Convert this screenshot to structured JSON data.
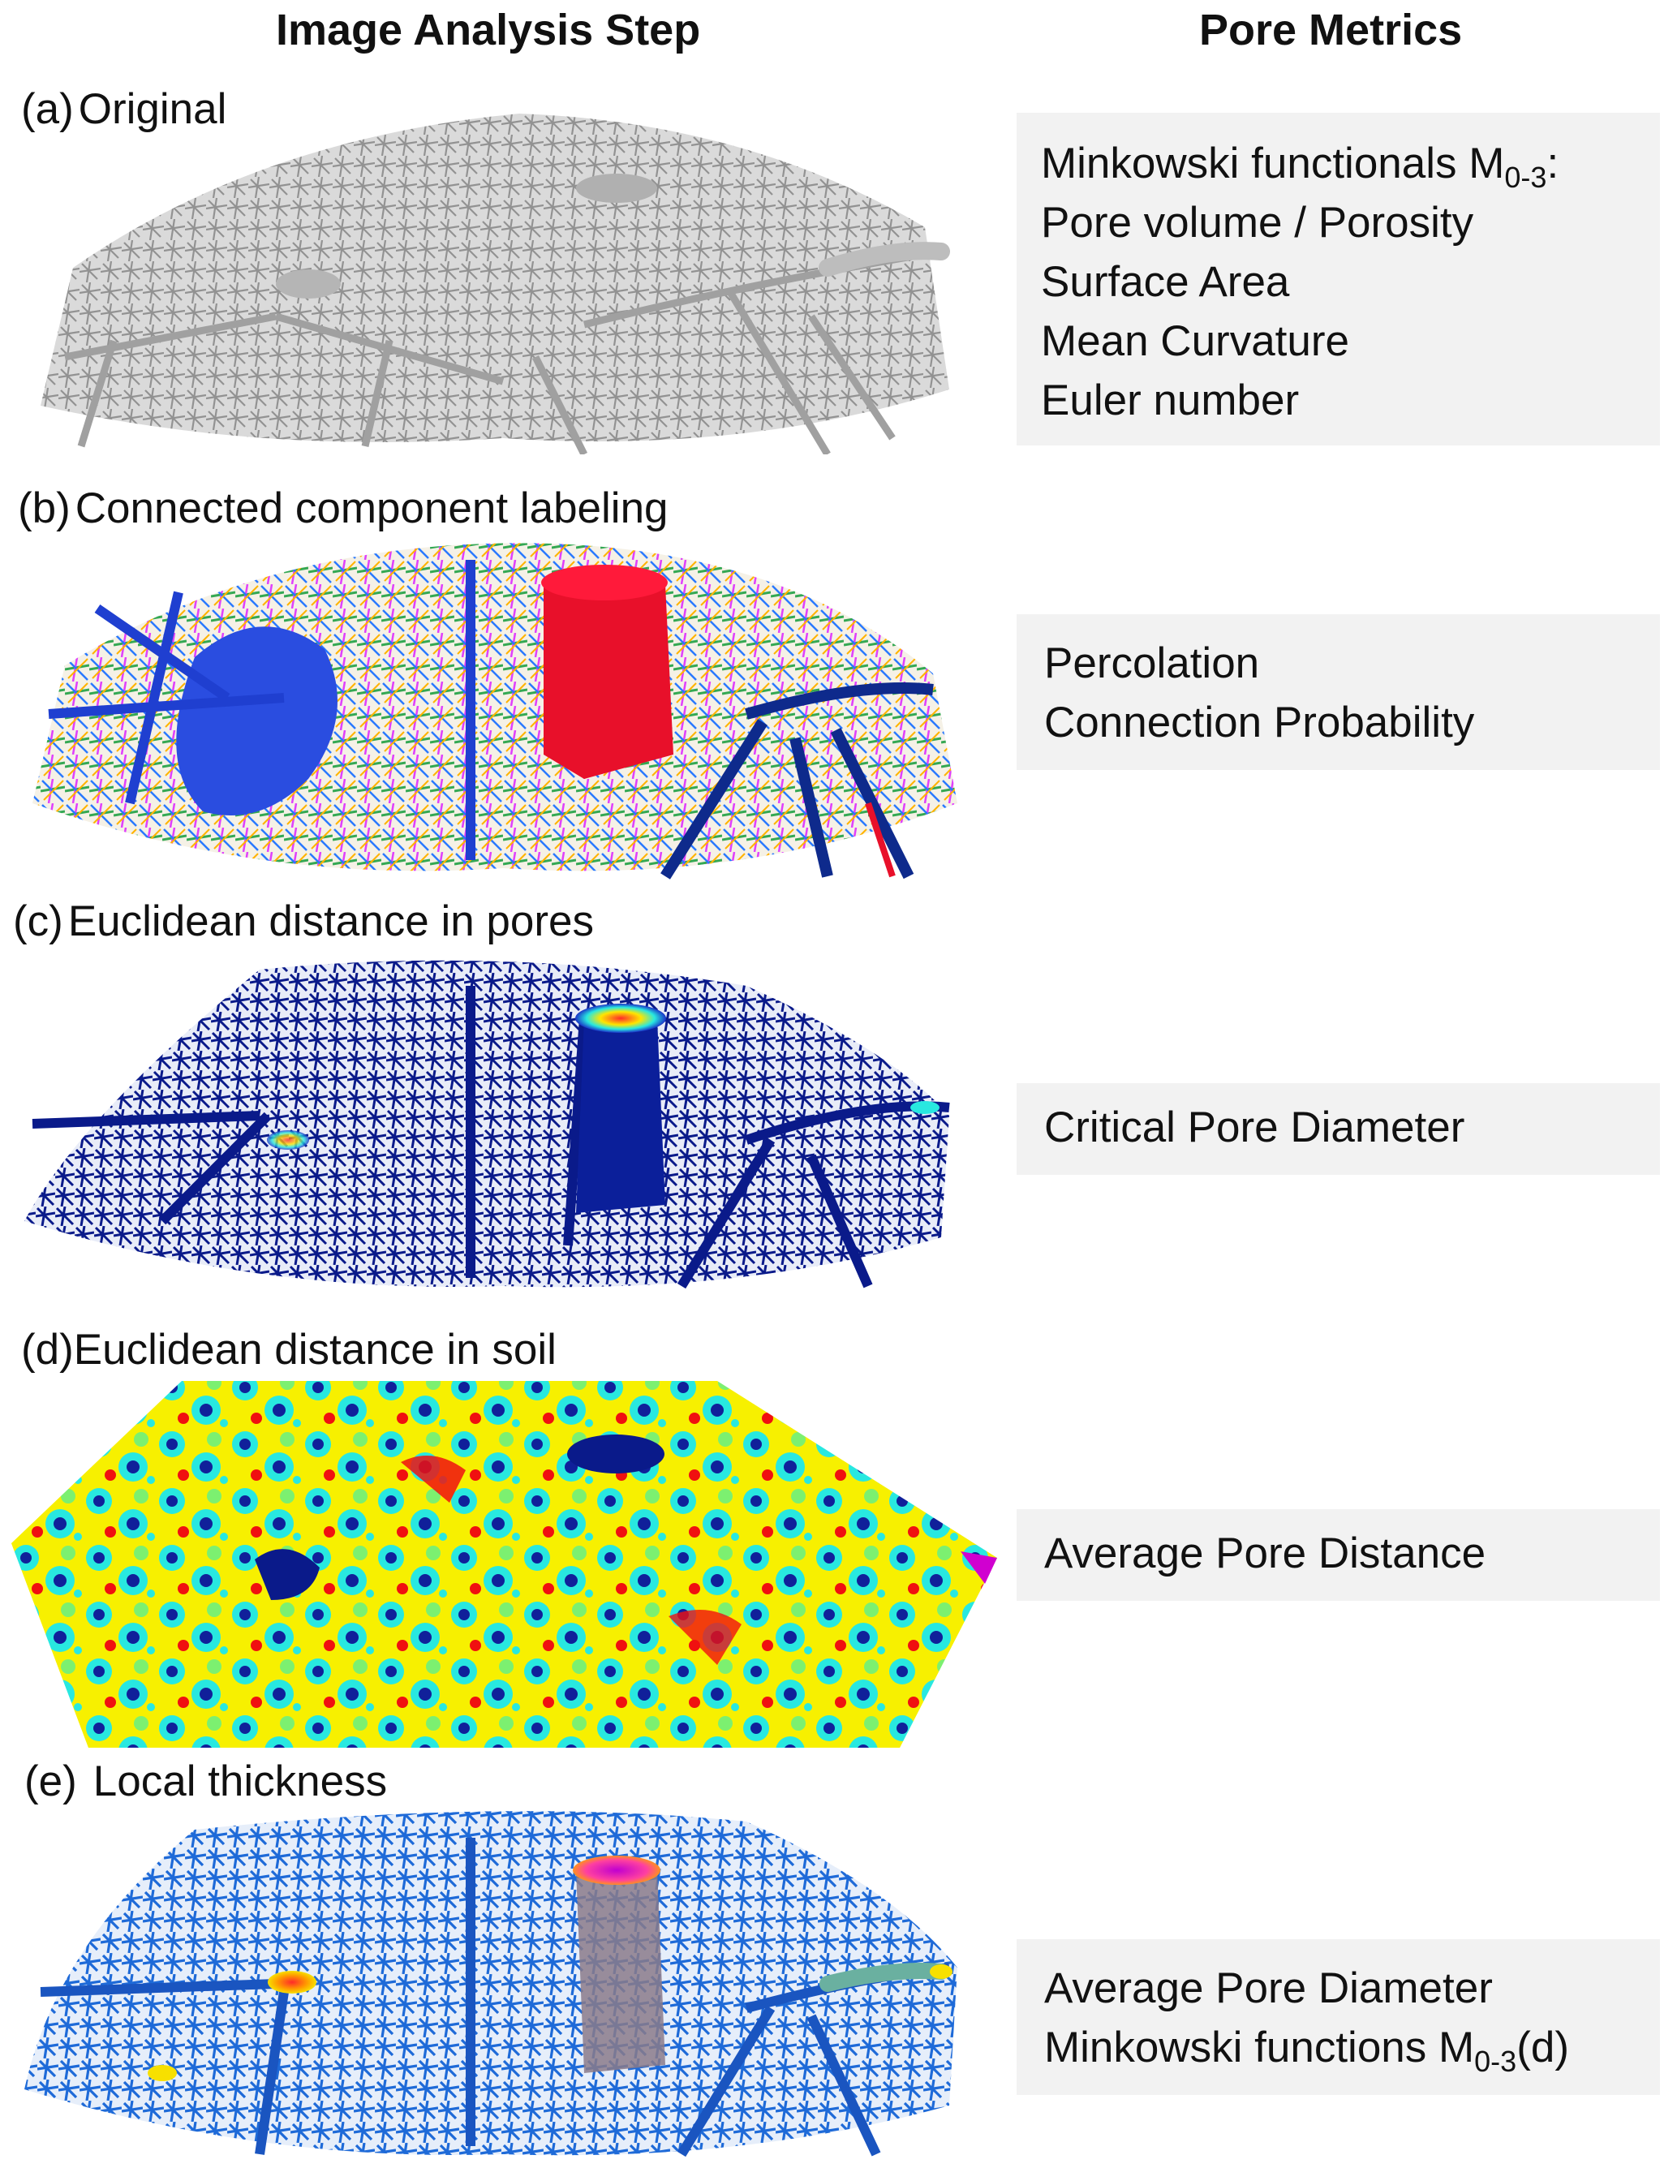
{
  "headers": {
    "left": "Image Analysis Step",
    "right": "Pore Metrics"
  },
  "steps": [
    {
      "tag": "(a)",
      "title": "Original"
    },
    {
      "tag": "(b)",
      "title": "Connected component labeling"
    },
    {
      "tag": "(c)",
      "title": "Euclidean distance in pores"
    },
    {
      "tag": "(d)",
      "title": "Euclidean distance in soil"
    },
    {
      "tag": "(e)",
      "title": "Local thickness"
    }
  ],
  "metrics": {
    "a": {
      "line1_main": "Minkowski functionals M",
      "line1_sub": "0-3",
      "line1_tail": ":",
      "line2": "Pore volume / Porosity",
      "line3": "Surface Area",
      "line4": "Mean Curvature",
      "line5": "Euler number"
    },
    "b": {
      "line1": "Percolation",
      "line2": "Connection Probability"
    },
    "c": {
      "line1": "Critical Pore Diameter"
    },
    "d": {
      "line1": "Average Pore Distance"
    },
    "e": {
      "line1": "Average Pore Diameter",
      "line2_main": "Minkowski functions M",
      "line2_sub": "0-3",
      "line2_tail": "(d)"
    }
  },
  "colors": {
    "original_pores": "#9a9a9a",
    "label_blue": "#1f3fd0",
    "label_red": "#e8102a",
    "distance_dark_blue": "#0a1a8a",
    "heat_yellow": "#f7f000",
    "heat_cyan": "#28e8e0",
    "heat_red": "#f01010",
    "thickness_blue": "#1e6ad8"
  }
}
